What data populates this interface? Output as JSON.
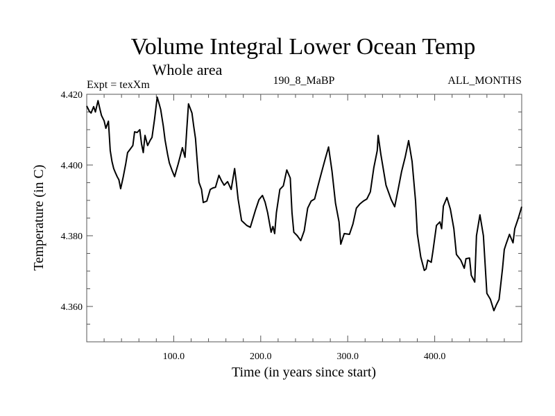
{
  "chart_data": {
    "type": "line",
    "title": "Volume Integral Lower Ocean Temp",
    "subtitle": "Whole area",
    "annotations": {
      "left": "Expt = texXm",
      "center": "190_8_MaBP",
      "right": "ALL_MONTHS"
    },
    "xlabel": "Time (in years since start)",
    "ylabel": "Temperature (in C)",
    "xlim": [
      0,
      500
    ],
    "ylim": [
      4.35,
      4.42
    ],
    "xticks_major": [
      100,
      200,
      300,
      400
    ],
    "xtick_labels": [
      "100.0",
      "200.0",
      "300.0",
      "400.0"
    ],
    "x_minor_step": 20,
    "yticks_major": [
      4.36,
      4.38,
      4.4,
      4.42
    ],
    "ytick_labels": [
      "4.360",
      "4.380",
      "4.400",
      "4.420"
    ],
    "y_minor_step": 0.005,
    "grid": false,
    "legend": "none",
    "line_color": "#000000",
    "series": [
      {
        "name": "Volume Integral Lower Ocean Temp",
        "x": [
          0,
          3,
          5,
          8,
          10,
          13,
          15,
          17,
          20,
          22,
          25,
          27,
          29,
          31,
          33,
          35,
          37,
          39,
          41,
          42,
          45,
          47,
          50,
          53,
          55,
          58,
          61,
          63,
          65,
          67,
          70,
          73,
          75,
          78,
          81,
          83,
          85,
          88,
          90,
          93,
          95,
          98,
          101,
          103,
          105,
          108,
          110,
          113,
          115,
          117,
          119,
          121,
          123,
          125,
          127,
          129,
          132,
          134,
          138,
          142,
          145,
          148,
          152,
          155,
          158,
          162,
          166,
          170,
          172,
          174,
          178,
          184,
          188,
          194,
          198,
          202,
          205,
          208,
          212,
          214,
          216,
          218,
          222,
          226,
          230,
          234,
          236,
          238,
          242,
          246,
          250,
          254,
          258,
          262,
          266,
          270,
          274,
          278,
          282,
          286,
          290,
          292,
          296,
          302,
          306,
          310,
          314,
          318,
          322,
          326,
          330,
          334,
          335,
          338,
          344,
          350,
          354,
          358,
          362,
          366,
          370,
          374,
          378,
          380,
          384,
          388,
          390,
          392,
          396,
          398,
          402,
          406,
          408,
          410,
          414,
          418,
          422,
          425,
          430,
          434,
          436,
          440,
          442,
          446,
          448,
          452,
          456,
          460,
          464,
          468,
          471,
          474,
          478,
          480,
          482,
          486,
          490,
          492,
          496,
          500
        ],
        "y": [
          4.4167,
          4.4152,
          4.4147,
          4.4165,
          4.415,
          4.4182,
          4.416,
          4.414,
          4.4125,
          4.4104,
          4.4124,
          4.4041,
          4.401,
          4.399,
          4.3978,
          4.3967,
          4.3958,
          4.3933,
          4.3955,
          4.3967,
          4.4005,
          4.4035,
          4.4045,
          4.4055,
          4.4094,
          4.4092,
          4.41,
          4.406,
          4.4035,
          4.4084,
          4.4055,
          4.407,
          4.4078,
          4.413,
          4.4192,
          4.4175,
          4.4157,
          4.411,
          4.4071,
          4.403,
          4.4006,
          4.3985,
          4.3967,
          4.3985,
          4.4002,
          4.403,
          4.4049,
          4.4022,
          4.41,
          4.4173,
          4.416,
          4.4147,
          4.411,
          4.4075,
          4.401,
          4.3951,
          4.3931,
          4.3894,
          4.3898,
          4.3931,
          4.3935,
          4.3937,
          4.3971,
          4.3955,
          4.3943,
          4.3953,
          4.3931,
          4.399,
          4.395,
          4.3904,
          4.3843,
          4.3829,
          4.3824,
          4.3873,
          4.3902,
          4.3914,
          4.3895,
          4.3865,
          4.381,
          4.3826,
          4.3806,
          4.3865,
          4.3931,
          4.3941,
          4.3986,
          4.3963,
          4.3865,
          4.381,
          4.38,
          4.3786,
          4.3814,
          4.3878,
          4.3898,
          4.3904,
          4.3943,
          4.398,
          4.4016,
          4.4051,
          4.3982,
          4.3892,
          4.3839,
          4.3776,
          4.3806,
          4.3804,
          4.3833,
          4.3878,
          4.389,
          4.3898,
          4.3904,
          4.3924,
          4.3992,
          4.4041,
          4.4084,
          4.4031,
          4.3943,
          4.3902,
          4.3882,
          4.3931,
          4.3982,
          4.4022,
          4.4069,
          4.401,
          4.3898,
          4.3806,
          4.374,
          4.3702,
          4.3706,
          4.3731,
          4.3725,
          4.3757,
          4.3829,
          4.3839,
          4.382,
          4.3884,
          4.3908,
          4.3875,
          4.382,
          4.3747,
          4.3731,
          4.3708,
          4.3735,
          4.3737,
          4.3688,
          4.3669,
          4.38,
          4.3859,
          4.38,
          4.3637,
          4.362,
          4.3588,
          4.3605,
          4.362,
          4.3708,
          4.3761,
          4.3776,
          4.3804,
          4.378,
          4.382,
          4.3849,
          4.3882
        ]
      }
    ]
  }
}
